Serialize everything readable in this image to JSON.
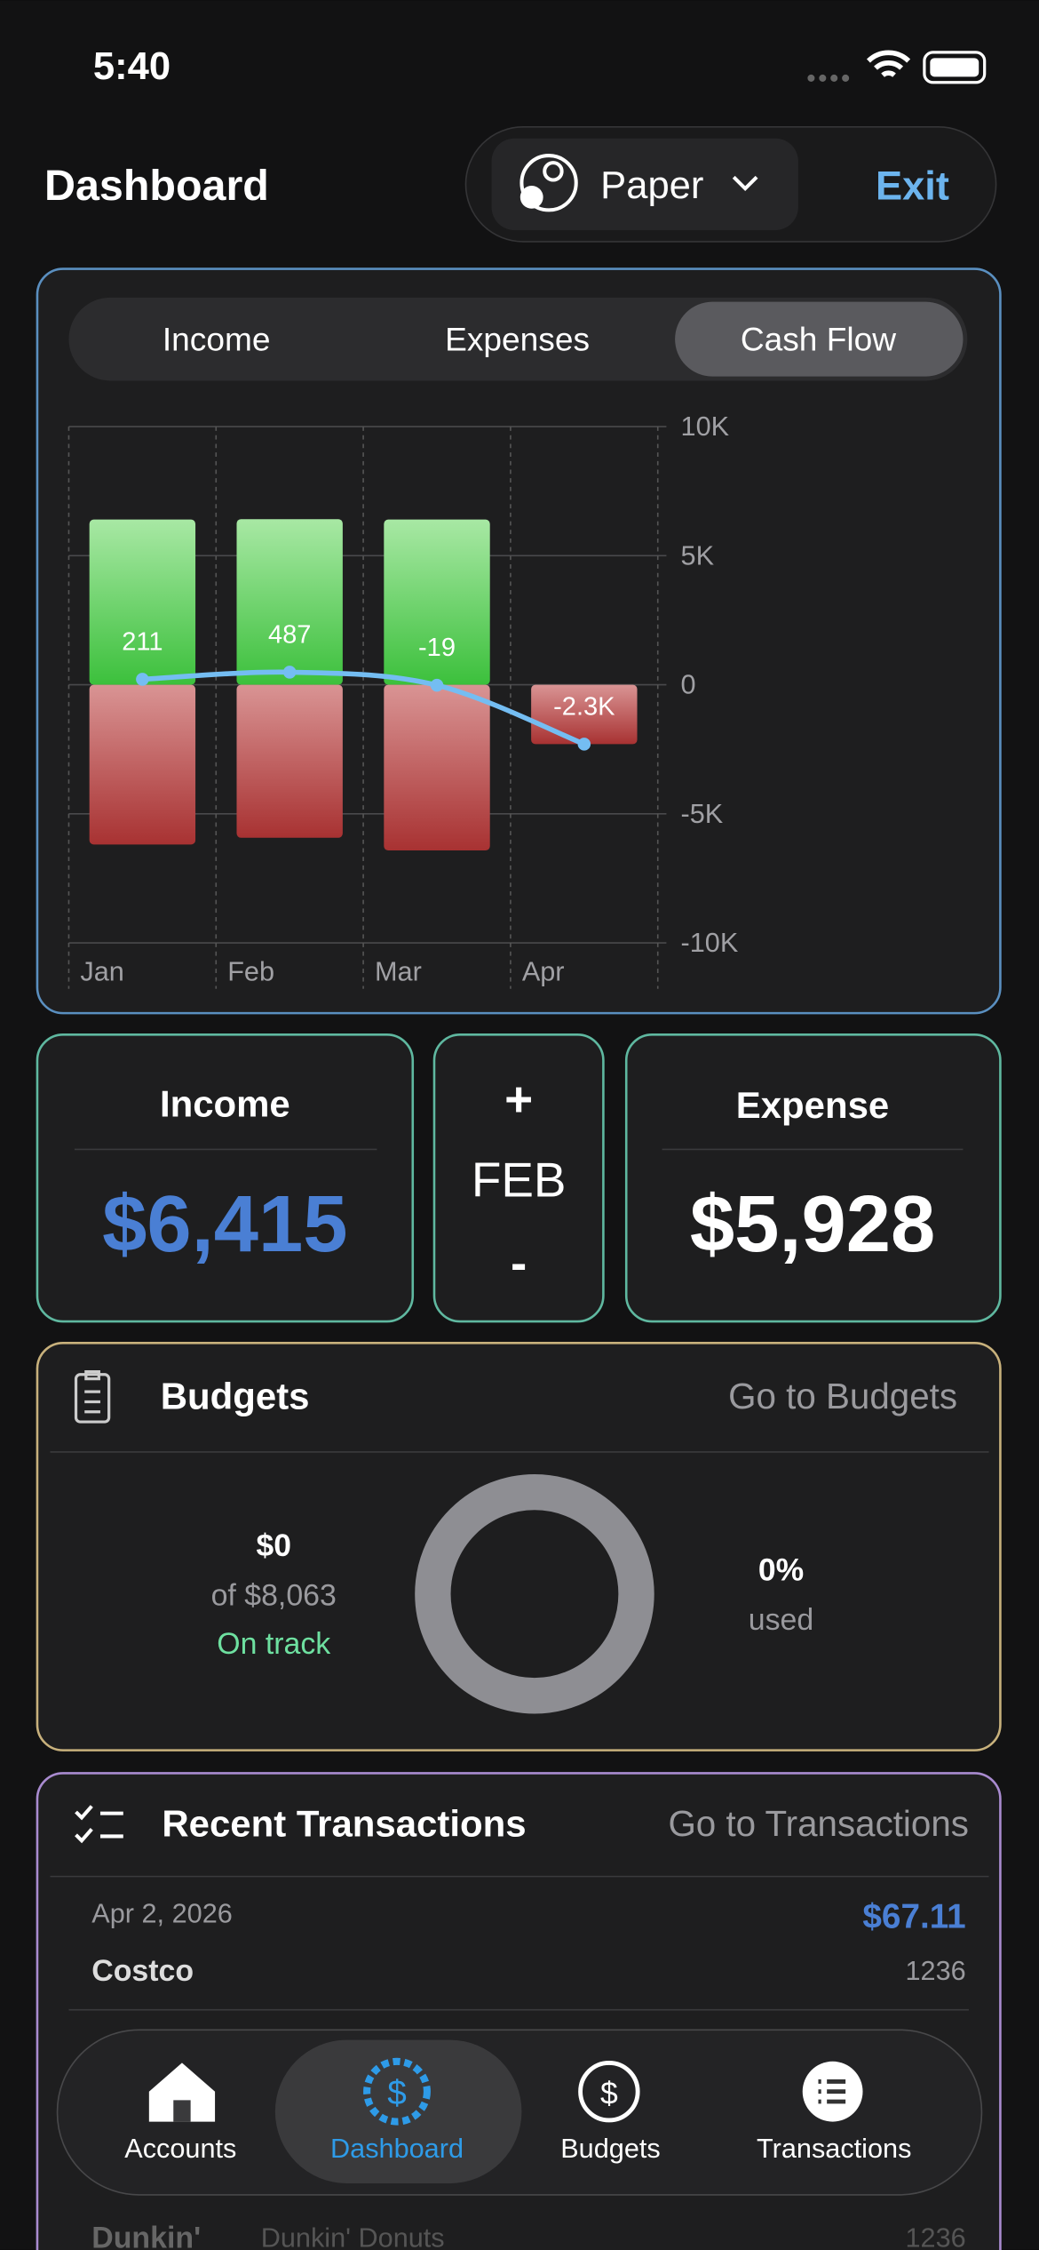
{
  "status_bar": {
    "time": "5:40"
  },
  "header": {
    "title": "Dashboard",
    "account": "Paper",
    "exit": "Exit"
  },
  "chart_card": {
    "tabs": [
      "Income",
      "Expenses",
      "Cash Flow"
    ],
    "chart": {
      "type": "bar",
      "stacked": true,
      "categories": [
        "Jan",
        "Feb",
        "Mar",
        "Apr"
      ],
      "series": [
        {
          "color": "#3cc03c",
          "values": [
            6400,
            6415,
            6400,
            0
          ]
        },
        {
          "color": "#a83232",
          "values": [
            -6189,
            -5928,
            -6419,
            -2300
          ]
        },
        {
          "type": "line",
          "color": "#74bdf2",
          "values": [
            211,
            487,
            -19,
            -2300
          ],
          "value_labels": [
            "211",
            "487",
            "-19",
            "-2.3K"
          ]
        }
      ],
      "ylim": [
        -10000,
        10000
      ],
      "yticks": [
        {
          "value": -10000,
          "label": "-10K"
        },
        {
          "value": -5000,
          "label": "-5K"
        },
        0,
        {
          "value": 5000,
          "label": "5K"
        },
        {
          "value": 10000,
          "label": "10K"
        }
      ],
      "grid": true
    }
  },
  "month_summary": {
    "income_label": "Income",
    "income": "$6,415",
    "increment": "+",
    "month": "FEB",
    "decrement": "-",
    "expense_label": "Expense",
    "expense": "$5,928"
  },
  "budgets": {
    "title": "Budgets",
    "link": "Go to Budgets",
    "spent": "$0",
    "of_total": "of $8,063",
    "status": "On track",
    "percent": "0%",
    "percent_caption": "used"
  },
  "transactions": {
    "title": "Recent Transactions",
    "link": "Go to Transactions",
    "rows": [
      {
        "date": "Apr 2, 2026",
        "name": "Costco",
        "amount": "$67.11",
        "account": "1236"
      },
      {
        "name": "Dunkin'",
        "description": "Dunkin' Donuts",
        "account": "1236"
      }
    ]
  },
  "tab_bar": {
    "tabs": [
      "Accounts",
      "Dashboard",
      "Budgets",
      "Transactions"
    ]
  }
}
